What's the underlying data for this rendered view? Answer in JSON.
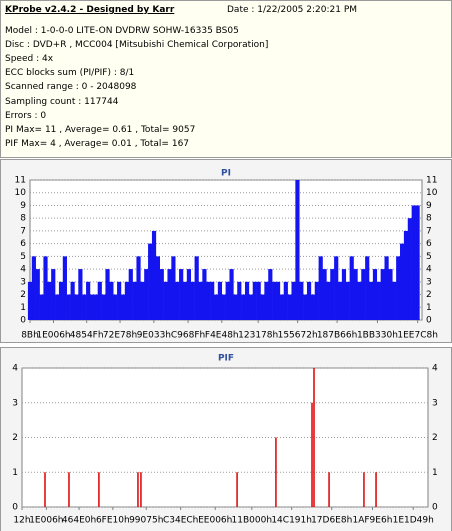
{
  "info": {
    "title": "KProbe v2.4.2 - Designed by Karr",
    "date": "Date : 1/22/2005 2:20:21 PM",
    "lines": [
      "Model : 1-0-0-0 LITE-ON DVDRW SOHW-16335 BS05",
      "Disc : DVD+R , MCC004 [Mitsubishi Chemical Corporation]",
      "Speed : 4x",
      "ECC blocks sum (PI/PIF) : 8/1",
      "Scanned range : 0 - 2048098",
      "Sampling count : 117744",
      "Errors : 0",
      "PI Max= 11 , Average= 0.61 , Total= 9057",
      "PIF Max= 4 , Average= 0.01 , Total= 167"
    ]
  },
  "chart_data": [
    {
      "type": "bar",
      "title": "PI",
      "color": "#1414f0",
      "grid": true,
      "xlim": [
        139,
        2048098
      ],
      "ylim": [
        0,
        11
      ],
      "yticks": [
        0,
        1,
        2,
        3,
        4,
        5,
        6,
        7,
        8,
        9,
        10,
        11
      ],
      "xticks": [
        {
          "value": 139,
          "label": "8Bh"
        },
        {
          "value": 122886,
          "label": "1E006h"
        },
        {
          "value": 296271,
          "label": "4854Fh"
        },
        {
          "value": 470648,
          "label": "72E78h"
        },
        {
          "value": 647219,
          "label": "9E033h"
        },
        {
          "value": 825999,
          "label": "C968Fh"
        },
        {
          "value": 1002056,
          "label": "F4E48h"
        },
        {
          "value": 1192312,
          "label": "123178h"
        },
        {
          "value": 1398386,
          "label": "155672h"
        },
        {
          "value": 1604454,
          "label": "187B66h"
        },
        {
          "value": 1815344,
          "label": "1BB330h"
        },
        {
          "value": 2025416,
          "label": "1EE7C8h"
        }
      ],
      "x": [
        139,
        20389,
        40639,
        60889,
        81139,
        101389,
        121639,
        141889,
        162139,
        182389,
        202639,
        222889,
        243139,
        263389,
        283639,
        303889,
        324139,
        344389,
        364639,
        384889,
        405139,
        425389,
        445639,
        465889,
        486139,
        506389,
        526639,
        546889,
        567139,
        587389,
        607639,
        627889,
        648139,
        668389,
        688639,
        708889,
        729139,
        749389,
        769639,
        789889,
        810139,
        830389,
        850639,
        870889,
        891139,
        911389,
        931639,
        951889,
        972139,
        992389,
        1012639,
        1032889,
        1053139,
        1073389,
        1093639,
        1113889,
        1134139,
        1154389,
        1174639,
        1194889,
        1215139,
        1235389,
        1255639,
        1275889,
        1296139,
        1316389,
        1336639,
        1356889,
        1377139,
        1397389,
        1417639,
        1437889,
        1458139,
        1478389,
        1498639,
        1518889,
        1539139,
        1559389,
        1579639,
        1599889,
        1620139,
        1640389,
        1660639,
        1680889,
        1701139,
        1721389,
        1741639,
        1761889,
        1782139,
        1802389,
        1822639,
        1842889,
        1863139,
        1883389,
        1903639,
        1923889,
        1944139,
        1964389,
        1984639,
        2004889,
        2025139
      ],
      "values": [
        3,
        5,
        4,
        2,
        5,
        3,
        4,
        2,
        3,
        5,
        2,
        3,
        2,
        4,
        2,
        3,
        2,
        2,
        3,
        2,
        4,
        3,
        2,
        3,
        2,
        3,
        4,
        3,
        5,
        3,
        4,
        6,
        7,
        5,
        4,
        3,
        4,
        5,
        3,
        4,
        3,
        4,
        3,
        5,
        3,
        4,
        3,
        3,
        2,
        3,
        2,
        3,
        4,
        2,
        3,
        2,
        3,
        2,
        3,
        3,
        2,
        3,
        4,
        3,
        3,
        2,
        3,
        2,
        3,
        11,
        3,
        2,
        3,
        2,
        3,
        5,
        4,
        3,
        4,
        5,
        3,
        4,
        3,
        5,
        4,
        3,
        4,
        5,
        3,
        4,
        3,
        4,
        5,
        4,
        3,
        5,
        6,
        7,
        8,
        9,
        9
      ]
    },
    {
      "type": "bar",
      "title": "PIF",
      "color": "#e01010",
      "grid": true,
      "xlim": [
        18,
        2048098
      ],
      "ylim": [
        0,
        4
      ],
      "yticks": [
        0,
        1,
        2,
        3,
        4
      ],
      "xticks": [
        {
          "value": 18,
          "label": "12h"
        },
        {
          "value": 122886,
          "label": "1E006h"
        },
        {
          "value": 287968,
          "label": "464E0h"
        },
        {
          "value": 458256,
          "label": "6FE10h"
        },
        {
          "value": 626805,
          "label": "99075h"
        },
        {
          "value": 800492,
          "label": "C34ECh"
        },
        {
          "value": 974854,
          "label": "EE006h"
        },
        {
          "value": 1159168,
          "label": "11B000h"
        },
        {
          "value": 1360273,
          "label": "14C191h"
        },
        {
          "value": 1562344,
          "label": "17D6E8h"
        },
        {
          "value": 1767910,
          "label": "1AF9E6h"
        },
        {
          "value": 1973577,
          "label": "1E1D49h"
        }
      ],
      "x": [
        116000,
        237000,
        388000,
        585000,
        600000,
        1085000,
        1281000,
        1463000,
        1473000,
        1549000,
        1725000,
        1786000
      ],
      "values": [
        1,
        1,
        1,
        1,
        1,
        1,
        2,
        3,
        4,
        1,
        1,
        1
      ]
    }
  ]
}
